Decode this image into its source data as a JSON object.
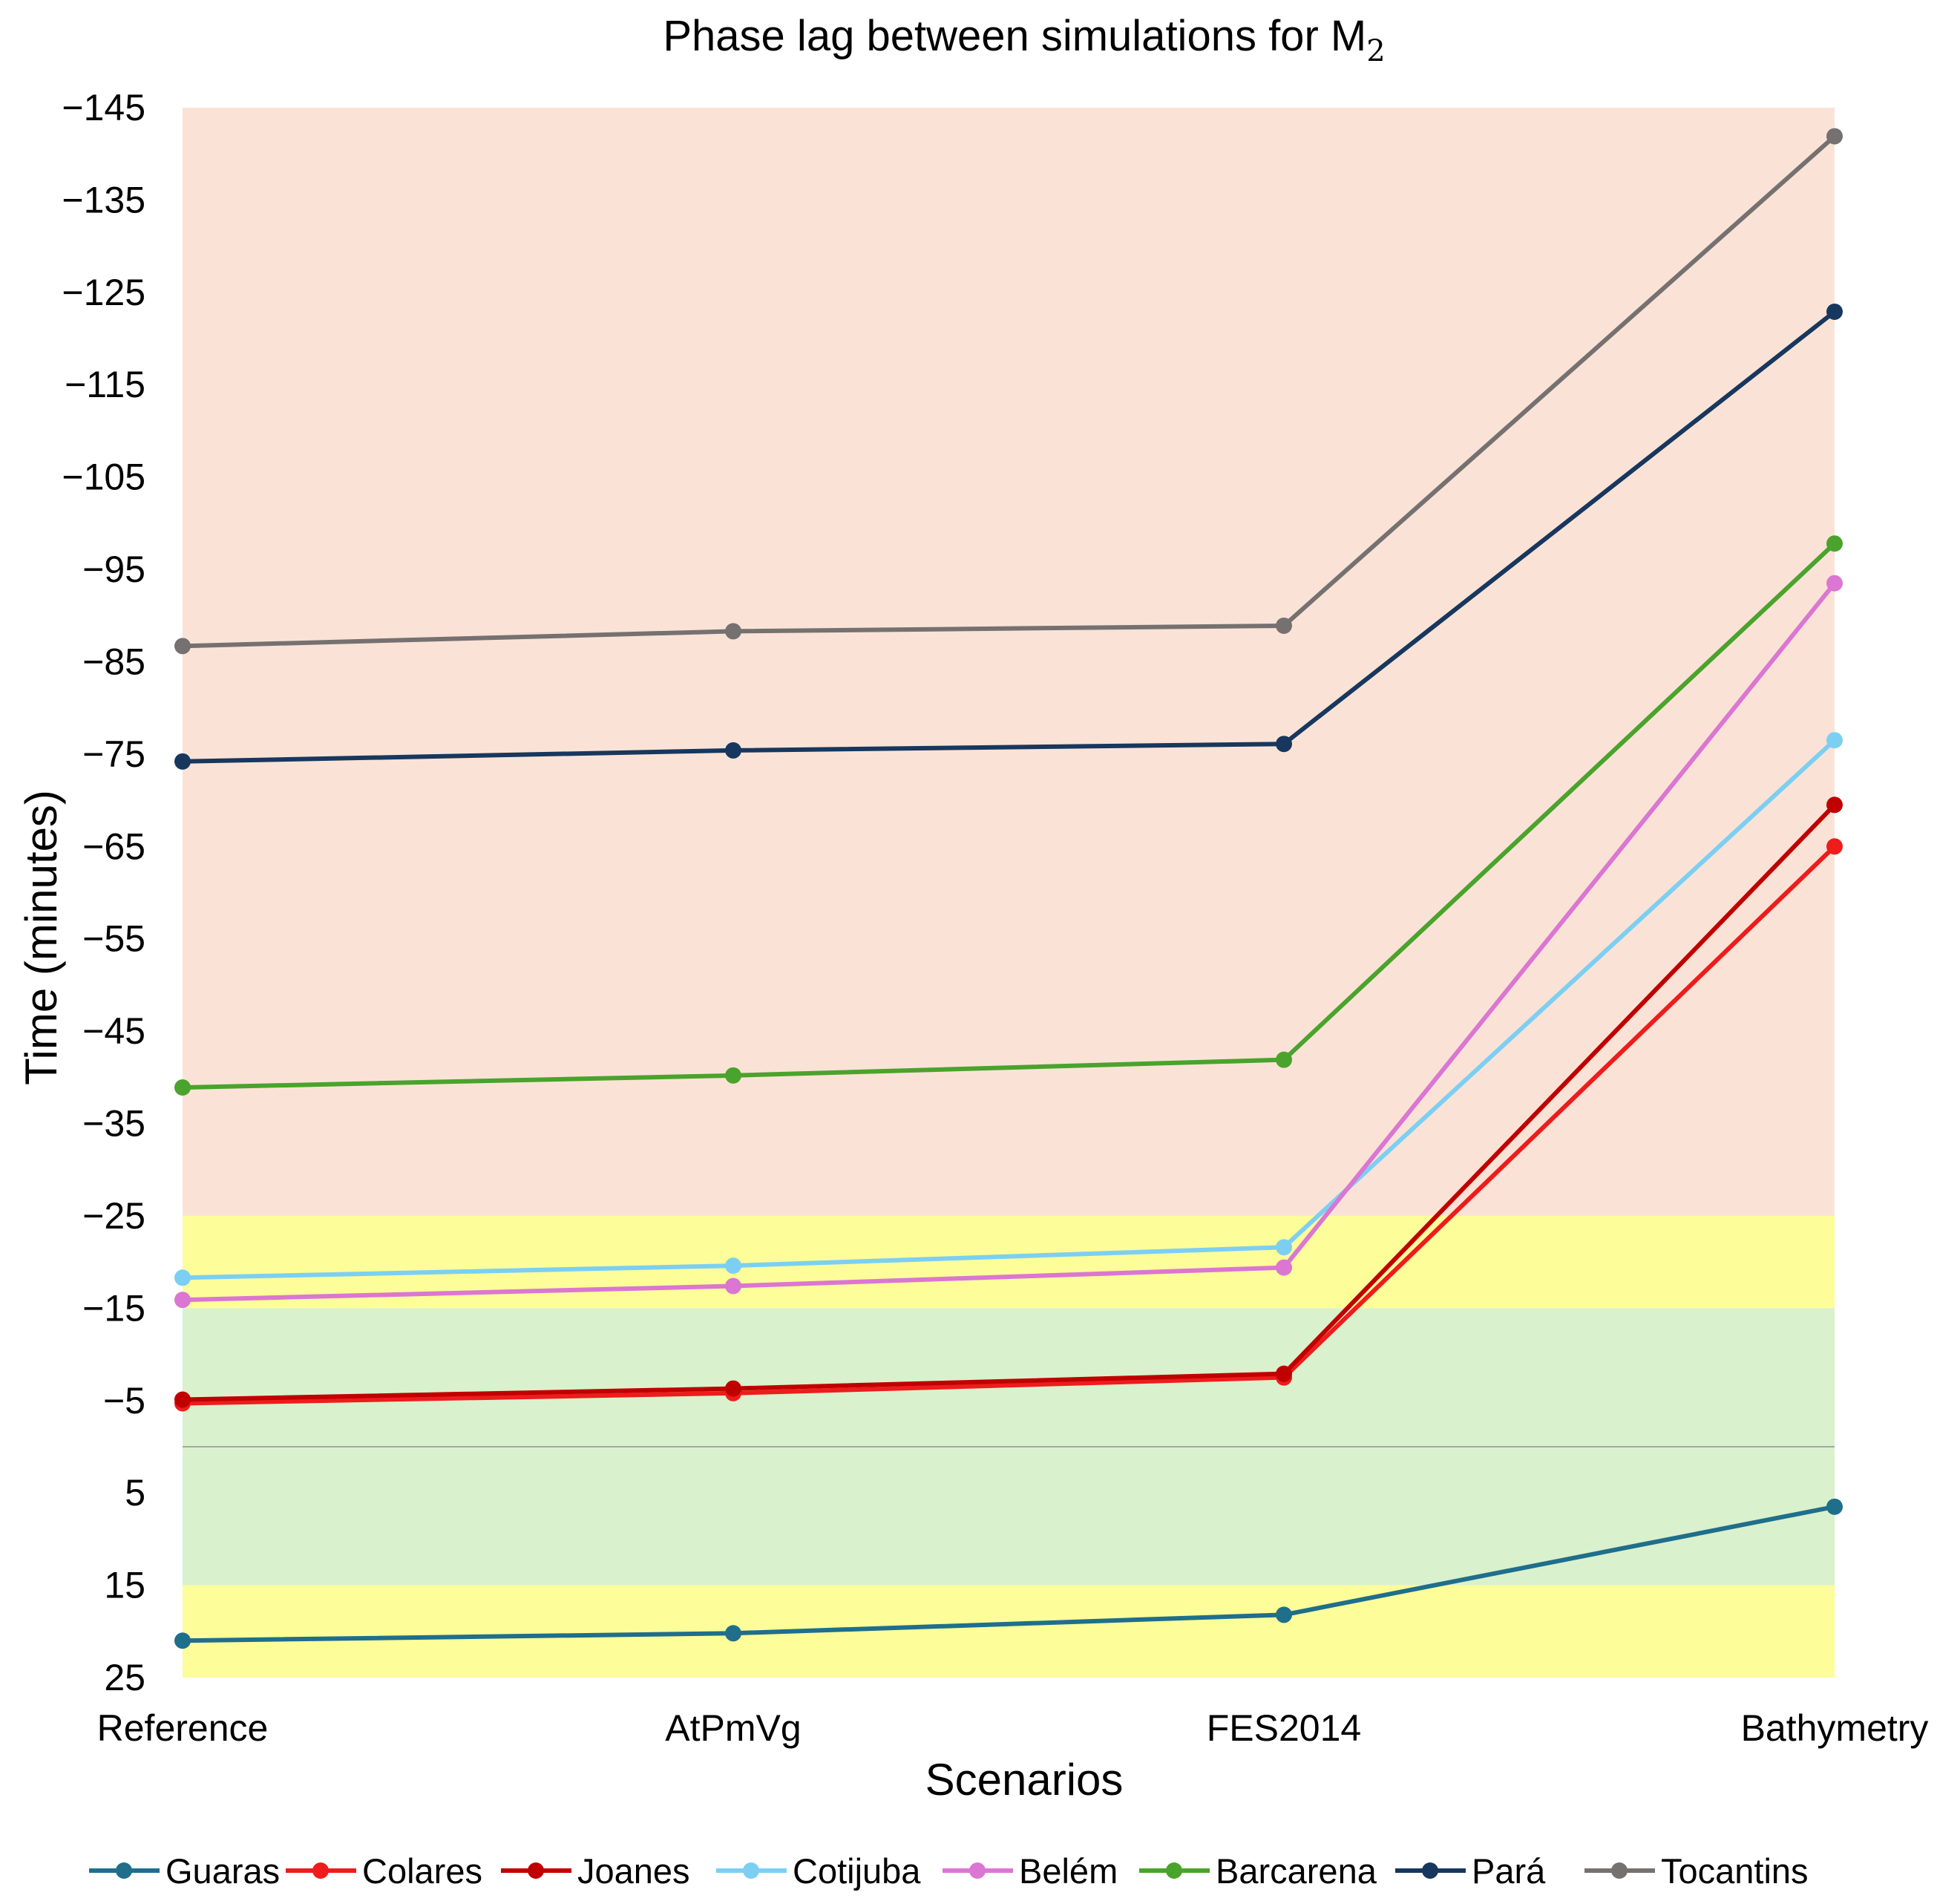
{
  "chart_data": {
    "type": "line",
    "title": "Phase lag between simulations for M",
    "title_subscript": "2",
    "xlabel": "Scenarios",
    "ylabel": "Time (minutes)",
    "categories": [
      "Reference",
      "AtPmVg",
      "FES2014",
      "Bathymetry"
    ],
    "ylim": [
      -145,
      25
    ],
    "y_inverted": true,
    "yticks": [
      -145,
      -135,
      -125,
      -115,
      -105,
      -95,
      -85,
      -75,
      -65,
      -55,
      -45,
      -35,
      -25,
      -15,
      -5,
      5,
      15,
      25
    ],
    "ytick_labels": [
      "−145",
      "−135",
      "−125",
      "−115",
      "−105",
      "−95",
      "−85",
      "−75",
      "−65",
      "−55",
      "−45",
      "−35",
      "−25",
      "−15",
      "−5",
      "5",
      "15",
      "25"
    ],
    "zero_line": 0,
    "bands": [
      {
        "from": -145,
        "to": -25,
        "color": "#fae3d6"
      },
      {
        "from": -25,
        "to": -15,
        "color": "#fdfd9a"
      },
      {
        "from": -15,
        "to": 15,
        "color": "#daf1cd"
      },
      {
        "from": 15,
        "to": 25,
        "color": "#fdfd9a"
      }
    ],
    "legend_position": "bottom",
    "series": [
      {
        "name": "Guaras",
        "color": "#1f6e8c",
        "values": [
          21,
          20.2,
          18.2,
          6.5
        ]
      },
      {
        "name": "Colares",
        "color": "#ee1c1c",
        "values": [
          -4.7,
          -5.8,
          -7.5,
          -65
        ]
      },
      {
        "name": "Joanes",
        "color": "#c00000",
        "values": [
          -5.1,
          -6.3,
          -7.9,
          -69.5
        ]
      },
      {
        "name": "Cotijuba",
        "color": "#7ccff3",
        "values": [
          -18.3,
          -19.6,
          -21.6,
          -76.5
        ]
      },
      {
        "name": "Belém",
        "color": "#db76d2",
        "values": [
          -15.9,
          -17.4,
          -19.4,
          -93.5
        ]
      },
      {
        "name": "Barcarena",
        "color": "#4aa32c",
        "values": [
          -38.9,
          -40.2,
          -41.9,
          -97.8
        ]
      },
      {
        "name": "Pará",
        "color": "#17375e",
        "values": [
          -74.2,
          -75.4,
          -76.1,
          -122.9
        ]
      },
      {
        "name": "Tocantins",
        "color": "#767171",
        "values": [
          -86.7,
          -88.3,
          -88.9,
          -141.9
        ]
      }
    ]
  }
}
